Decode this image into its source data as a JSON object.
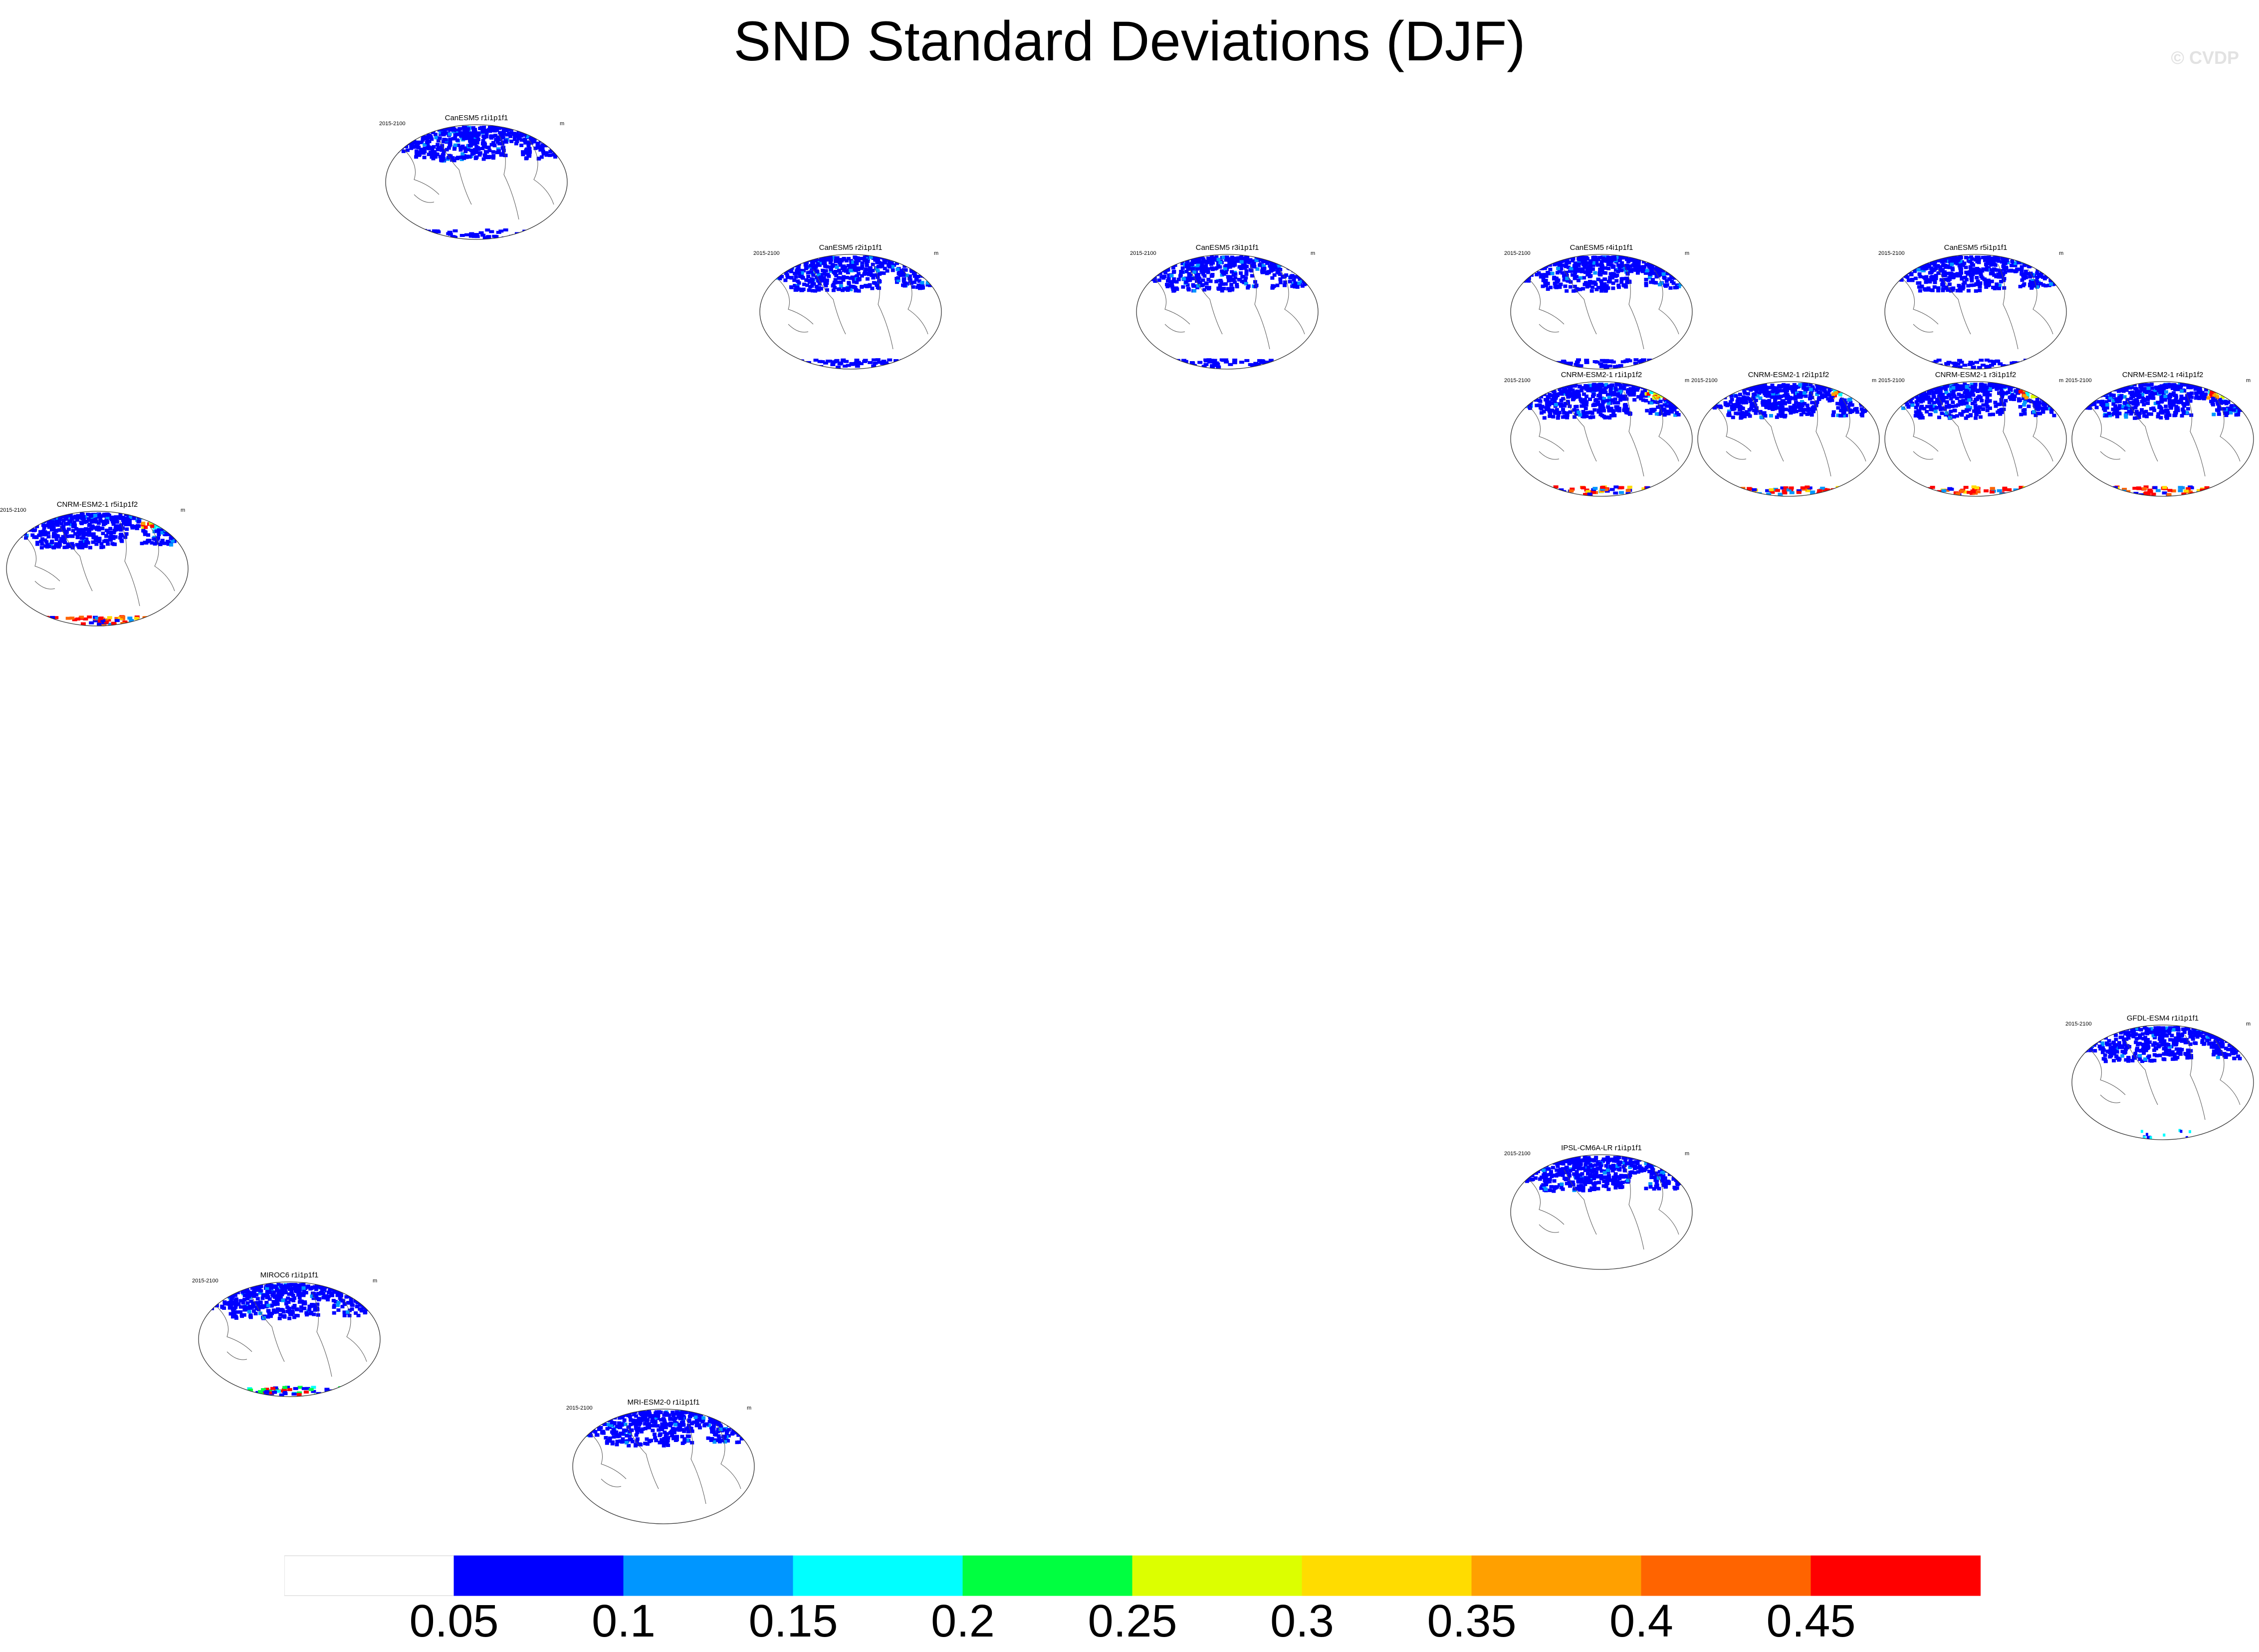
{
  "chart_data": {
    "type": "heatmap",
    "title": "SND Standard Deviations (DJF)",
    "watermark": "© CVDP",
    "period_label": "2015-2100",
    "units_label": "m",
    "colorbar": {
      "levels": [
        0.05,
        0.1,
        0.15,
        0.2,
        0.25,
        0.3,
        0.35,
        0.4,
        0.45
      ],
      "tick_labels": [
        "0.05",
        "0.1",
        "0.15",
        "0.2",
        "0.25",
        "0.3",
        "0.35",
        "0.4",
        "0.45"
      ],
      "colors": [
        "#ffffff",
        "#0000ff",
        "#0096ff",
        "#00ffff",
        "#00ff40",
        "#dcff00",
        "#ffdc00",
        "#ffa000",
        "#ff6400",
        "#ff0000"
      ]
    },
    "panels": [
      {
        "title": "CanESM5 r1i1p1f1",
        "ant": "blue"
      },
      {
        "title": "CanESM5 r2i1p1f1",
        "ant": "blue"
      },
      {
        "title": "CanESM5 r3i1p1f1",
        "ant": "blue"
      },
      {
        "title": "CanESM5 r4i1p1f1",
        "ant": "blue"
      },
      {
        "title": "CanESM5 r5i1p1f1",
        "ant": "blue"
      },
      {
        "title": "CNRM-ESM2-1 r1i1p1f2",
        "ant": "red"
      },
      {
        "title": "CNRM-ESM2-1 r2i1p1f2",
        "ant": "red"
      },
      {
        "title": "CNRM-ESM2-1 r3i1p1f2",
        "ant": "red"
      },
      {
        "title": "CNRM-ESM2-1 r4i1p1f2",
        "ant": "red"
      },
      {
        "title": "CNRM-ESM2-1 r5i1p1f2",
        "ant": "red"
      },
      {
        "title": "GFDL-ESM4 r1i1p1f1",
        "ant": "sparse"
      },
      {
        "title": "IPSL-CM6A-LR r1i1p1f1",
        "ant": "none"
      },
      {
        "title": "MIROC6 r1i1p1f1",
        "ant": "mixed"
      },
      {
        "title": "MRI-ESM2-0 r1i1p1f1",
        "ant": "none"
      }
    ]
  }
}
